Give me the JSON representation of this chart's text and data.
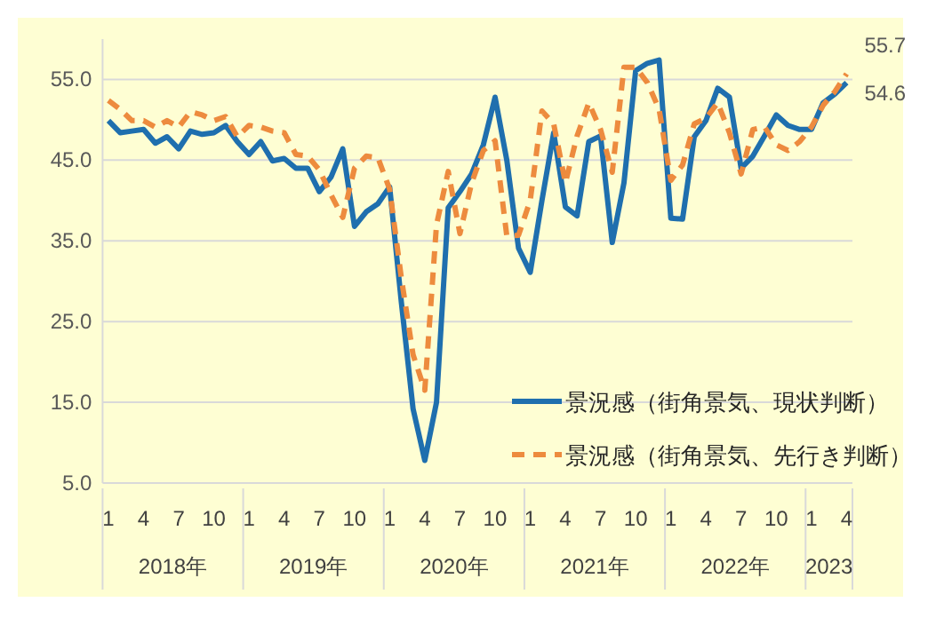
{
  "chart_data": {
    "type": "line",
    "categories": [
      "1",
      null,
      null,
      "4",
      null,
      null,
      "7",
      null,
      null,
      "10",
      null,
      null,
      "1",
      null,
      null,
      "4",
      null,
      null,
      "7",
      null,
      null,
      "10",
      null,
      null,
      "1",
      null,
      null,
      "4",
      null,
      null,
      "7",
      null,
      null,
      "10",
      null,
      null,
      "1",
      null,
      null,
      "4",
      null,
      null,
      "7",
      null,
      null,
      "10",
      null,
      null,
      "1",
      null,
      null,
      "4",
      null,
      null,
      "7",
      null,
      null,
      "10",
      null,
      null,
      "1",
      null,
      null,
      "4"
    ],
    "annotations": [
      "2018年",
      "2019年",
      "2020年",
      "2021年",
      "2022年",
      "2023"
    ],
    "series": [
      {
        "name": "景況感（街角景気、現状判断）",
        "color": "#1f6fae",
        "line_style": "solid",
        "values": [
          49.9,
          48.4,
          48.6,
          48.8,
          47.1,
          47.9,
          46.4,
          48.6,
          48.2,
          48.4,
          49.3,
          47.3,
          45.7,
          47.3,
          44.9,
          45.2,
          44.0,
          44.0,
          41.1,
          42.9,
          46.4,
          36.8,
          38.6,
          39.6,
          41.7,
          27.4,
          14.2,
          7.8,
          15.0,
          39.1,
          41.1,
          43.3,
          46.9,
          52.8,
          45.0,
          34.1,
          31.1,
          40.0,
          48.4,
          39.2,
          38.1,
          47.3,
          48.0,
          34.8,
          42.2,
          56.1,
          57.0,
          57.4,
          37.8,
          37.7,
          47.9,
          49.9,
          53.9,
          52.8,
          44.0,
          45.5,
          48.0,
          50.6,
          49.3,
          48.8,
          48.8,
          52.1,
          53.2,
          54.6
        ],
        "value_labels": [
          null,
          null,
          null,
          null,
          null,
          null,
          null,
          null,
          null,
          null,
          null,
          null,
          null,
          null,
          null,
          null,
          null,
          null,
          null,
          null,
          null,
          null,
          null,
          null,
          null,
          null,
          null,
          null,
          null,
          null,
          null,
          null,
          null,
          null,
          null,
          null,
          null,
          null,
          null,
          null,
          null,
          null,
          null,
          null,
          null,
          null,
          null,
          null,
          null,
          null,
          null,
          null,
          null,
          null,
          null,
          null,
          null,
          null,
          null,
          null,
          null,
          null,
          null,
          "54.6"
        ]
      },
      {
        "name": "景況感（街角景気、先行き判断）",
        "color": "#ed8b3e",
        "line_style": "dashed",
        "values": [
          52.4,
          51.3,
          49.9,
          49.9,
          49.1,
          49.9,
          49.1,
          51.0,
          50.6,
          49.9,
          50.4,
          47.9,
          49.3,
          49.1,
          48.6,
          48.4,
          45.7,
          45.5,
          43.8,
          40.7,
          37.9,
          44.0,
          45.5,
          45.3,
          41.4,
          30.4,
          20.9,
          16.5,
          37.0,
          43.6,
          35.9,
          42.2,
          46.2,
          47.4,
          35.6,
          35.7,
          40.0,
          51.1,
          49.5,
          42.2,
          48.0,
          52.1,
          48.8,
          43.5,
          56.5,
          56.5,
          54.6,
          51.3,
          42.5,
          44.4,
          49.5,
          50.2,
          52.1,
          48.4,
          43.3,
          48.8,
          49.1,
          46.9,
          46.2,
          47.3,
          49.1,
          51.8,
          53.5,
          55.7
        ],
        "value_labels": [
          null,
          null,
          null,
          null,
          null,
          null,
          null,
          null,
          null,
          null,
          null,
          null,
          null,
          null,
          null,
          null,
          null,
          null,
          null,
          null,
          null,
          null,
          null,
          null,
          null,
          null,
          null,
          null,
          null,
          null,
          null,
          null,
          null,
          null,
          null,
          null,
          null,
          null,
          null,
          null,
          null,
          null,
          null,
          null,
          null,
          null,
          null,
          null,
          null,
          null,
          null,
          null,
          null,
          null,
          null,
          null,
          null,
          null,
          null,
          null,
          null,
          null,
          null,
          "55.7"
        ]
      }
    ],
    "ylim": [
      5,
      60
    ],
    "yticks": [
      {
        "value": 5,
        "label": "5.0"
      },
      {
        "value": 15,
        "label": "15.0"
      },
      {
        "value": 25,
        "label": "25.0"
      },
      {
        "value": 35,
        "label": "35.0"
      },
      {
        "value": 45,
        "label": "45.0"
      },
      {
        "value": 55,
        "label": "55.0"
      }
    ],
    "grid": "y",
    "legend": "bottom right",
    "marker": "none"
  }
}
